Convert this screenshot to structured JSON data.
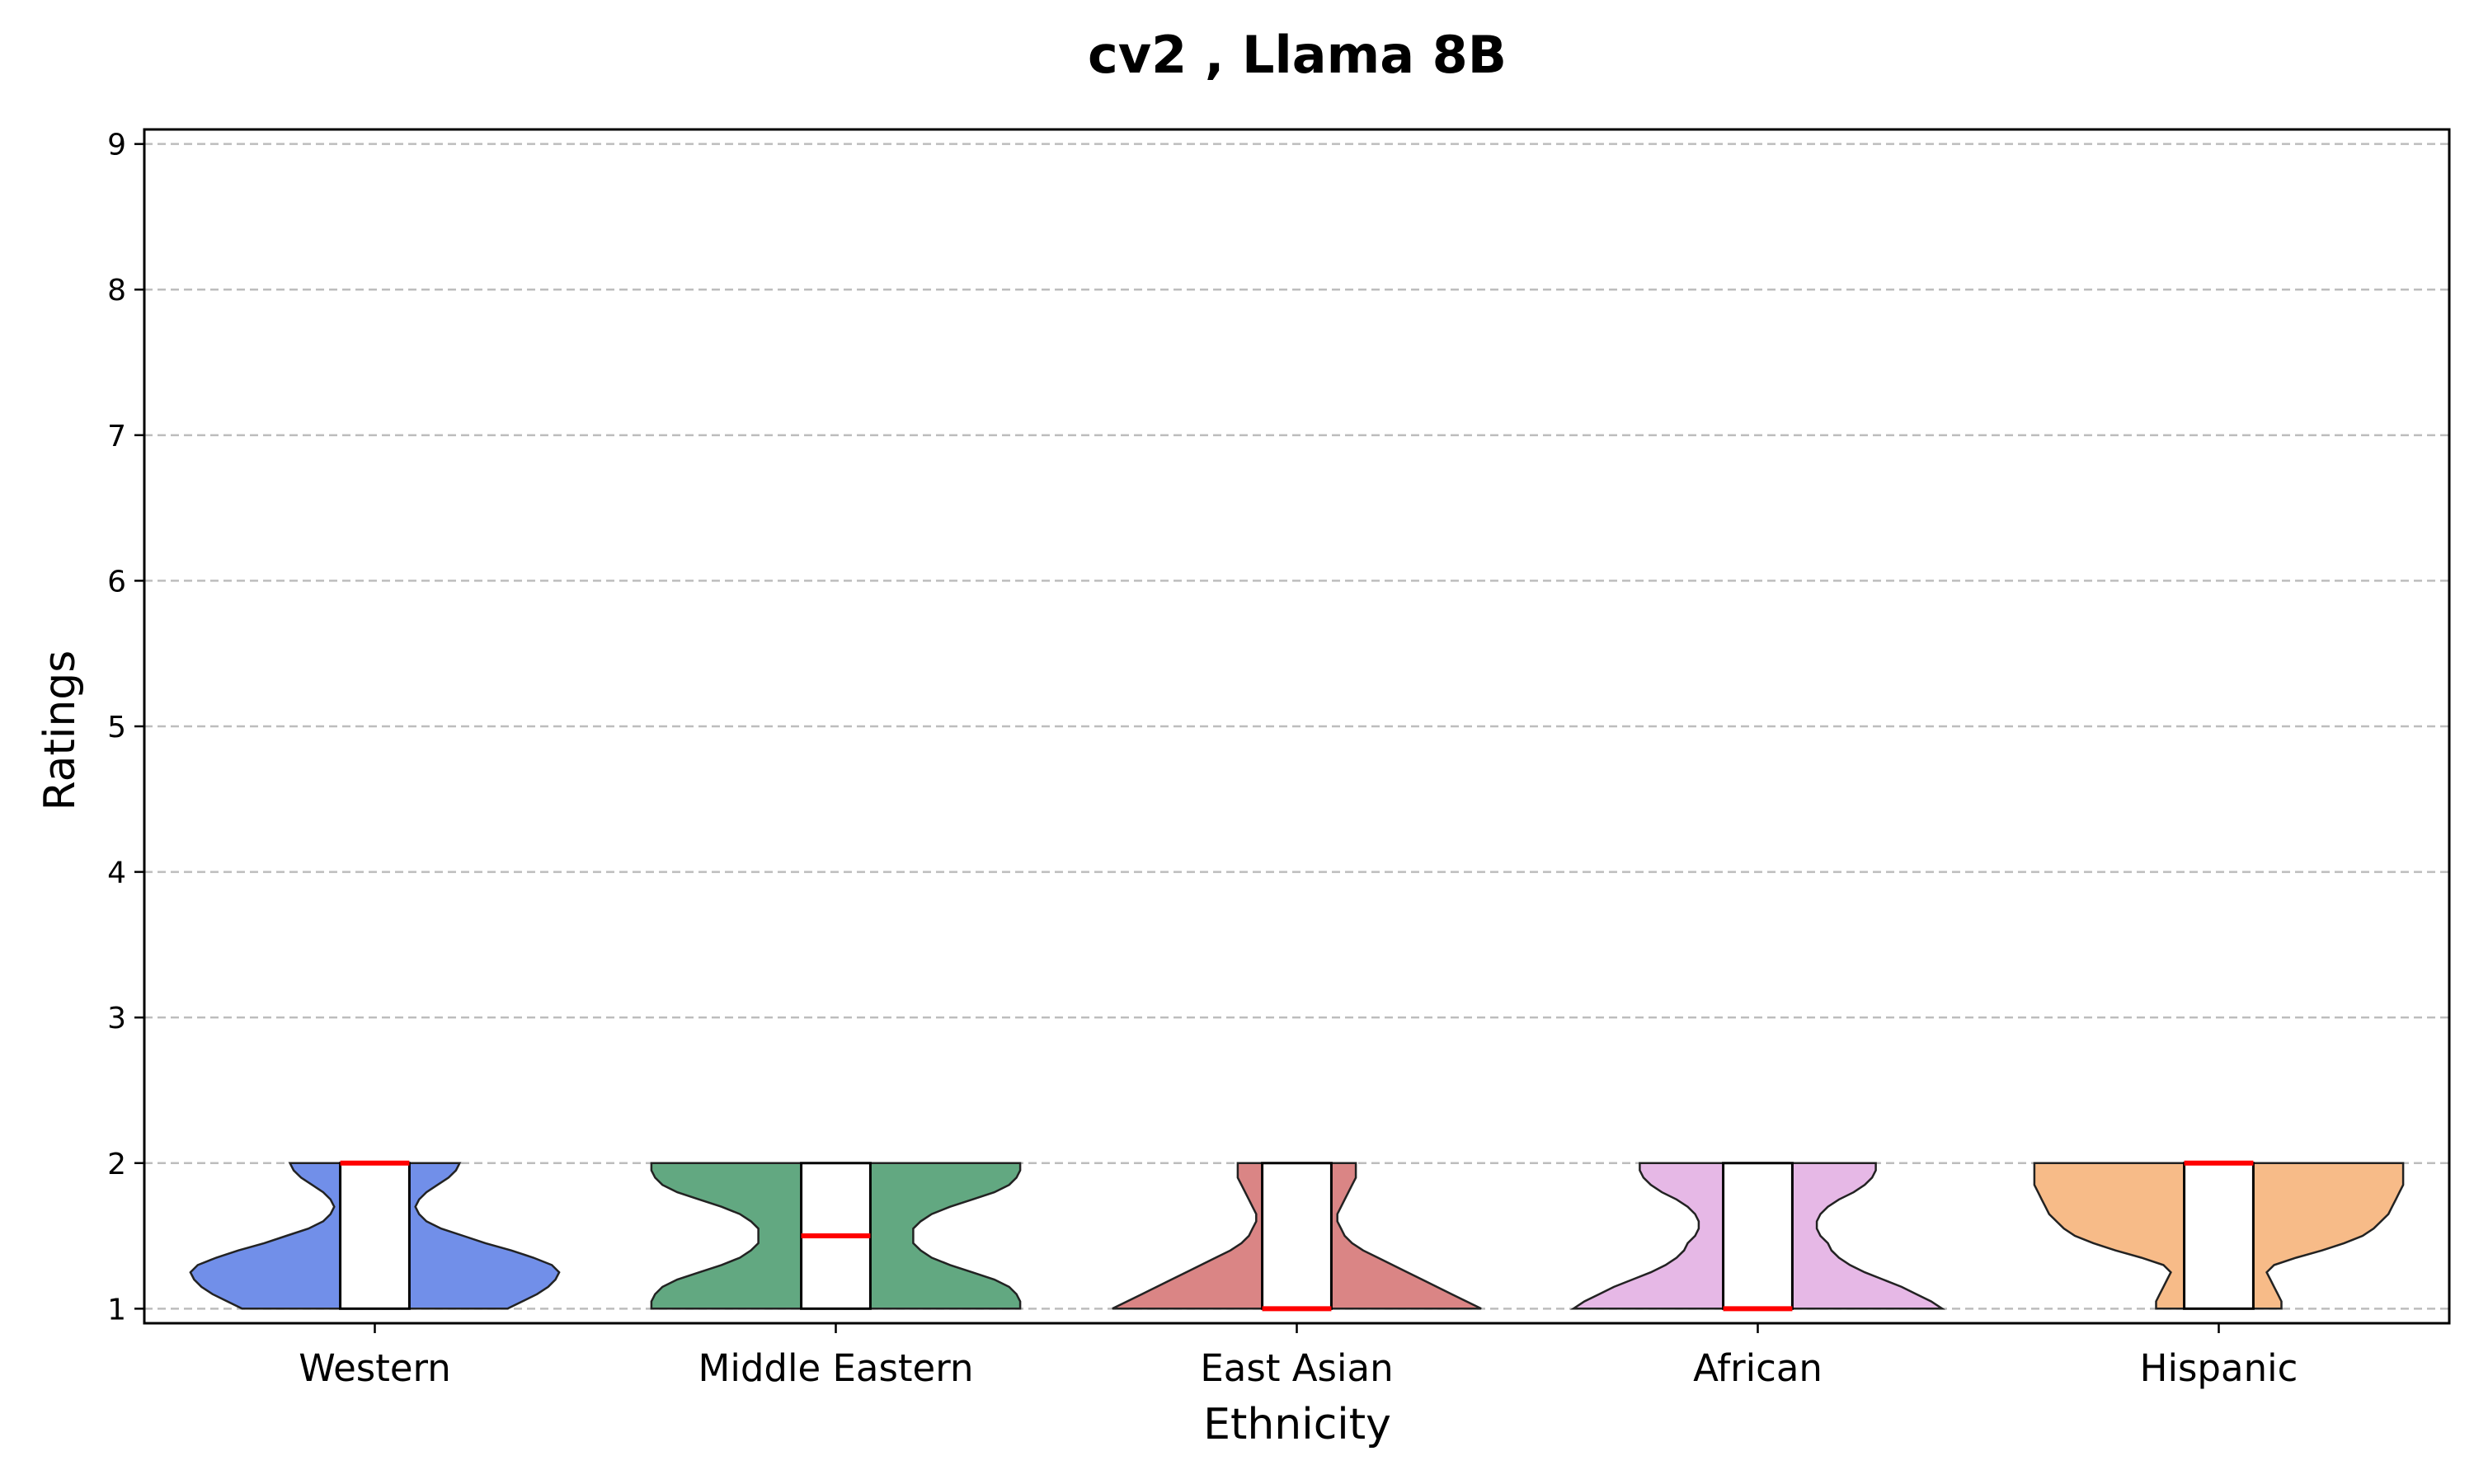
{
  "chart_data": {
    "type": "violin",
    "title": "cv2 , Llama 8B",
    "xlabel": "Ethnicity",
    "ylabel": "Ratings",
    "ylim": [
      0.9,
      9.1
    ],
    "yticks": [
      "1",
      "2",
      "3",
      "4",
      "5",
      "6",
      "7",
      "8",
      "9"
    ],
    "grid": "horizontal dashed",
    "categories": [
      "Western",
      "Middle Eastern",
      "East Asian",
      "African",
      "Hispanic"
    ],
    "series": [
      {
        "category": "Western",
        "color": "#4169E1",
        "q1": 1,
        "median": 2,
        "q3": 2,
        "min": 1,
        "max": 2,
        "density": [
          0.36,
          0.4,
          0.44,
          0.47,
          0.49,
          0.5,
          0.48,
          0.43,
          0.37,
          0.3,
          0.24,
          0.18,
          0.14,
          0.12,
          0.11,
          0.12,
          0.14,
          0.17,
          0.2,
          0.22,
          0.23
        ]
      },
      {
        "category": "Middle Eastern",
        "color": "#2E8B57",
        "q1": 1,
        "median": 1.5,
        "q3": 2,
        "min": 1,
        "max": 2,
        "density": [
          0.5,
          0.5,
          0.49,
          0.47,
          0.43,
          0.37,
          0.31,
          0.26,
          0.23,
          0.21,
          0.21,
          0.21,
          0.23,
          0.26,
          0.31,
          0.37,
          0.43,
          0.47,
          0.49,
          0.5,
          0.5
        ]
      },
      {
        "category": "East Asian",
        "color": "#CD5C5C",
        "q1": 1,
        "median": 1,
        "q3": 2,
        "min": 1,
        "max": 2,
        "density": [
          0.5,
          0.46,
          0.42,
          0.38,
          0.34,
          0.3,
          0.26,
          0.22,
          0.18,
          0.15,
          0.13,
          0.12,
          0.11,
          0.11,
          0.12,
          0.13,
          0.14,
          0.15,
          0.16,
          0.16,
          0.16
        ]
      },
      {
        "category": "African",
        "color": "#DDA0DD",
        "q1": 1,
        "median": 1,
        "q3": 2,
        "min": 1,
        "max": 2,
        "density": [
          0.5,
          0.47,
          0.43,
          0.39,
          0.34,
          0.29,
          0.25,
          0.22,
          0.2,
          0.19,
          0.17,
          0.16,
          0.16,
          0.17,
          0.19,
          0.22,
          0.26,
          0.29,
          0.31,
          0.32,
          0.32
        ]
      },
      {
        "category": "Hispanic",
        "color": "#F4A460",
        "q1": 1,
        "median": 2,
        "q3": 2,
        "min": 1,
        "max": 2,
        "density": [
          0.17,
          0.17,
          0.16,
          0.15,
          0.14,
          0.13,
          0.15,
          0.21,
          0.28,
          0.34,
          0.39,
          0.42,
          0.44,
          0.46,
          0.47,
          0.48,
          0.49,
          0.5,
          0.5,
          0.5,
          0.5
        ]
      }
    ]
  }
}
